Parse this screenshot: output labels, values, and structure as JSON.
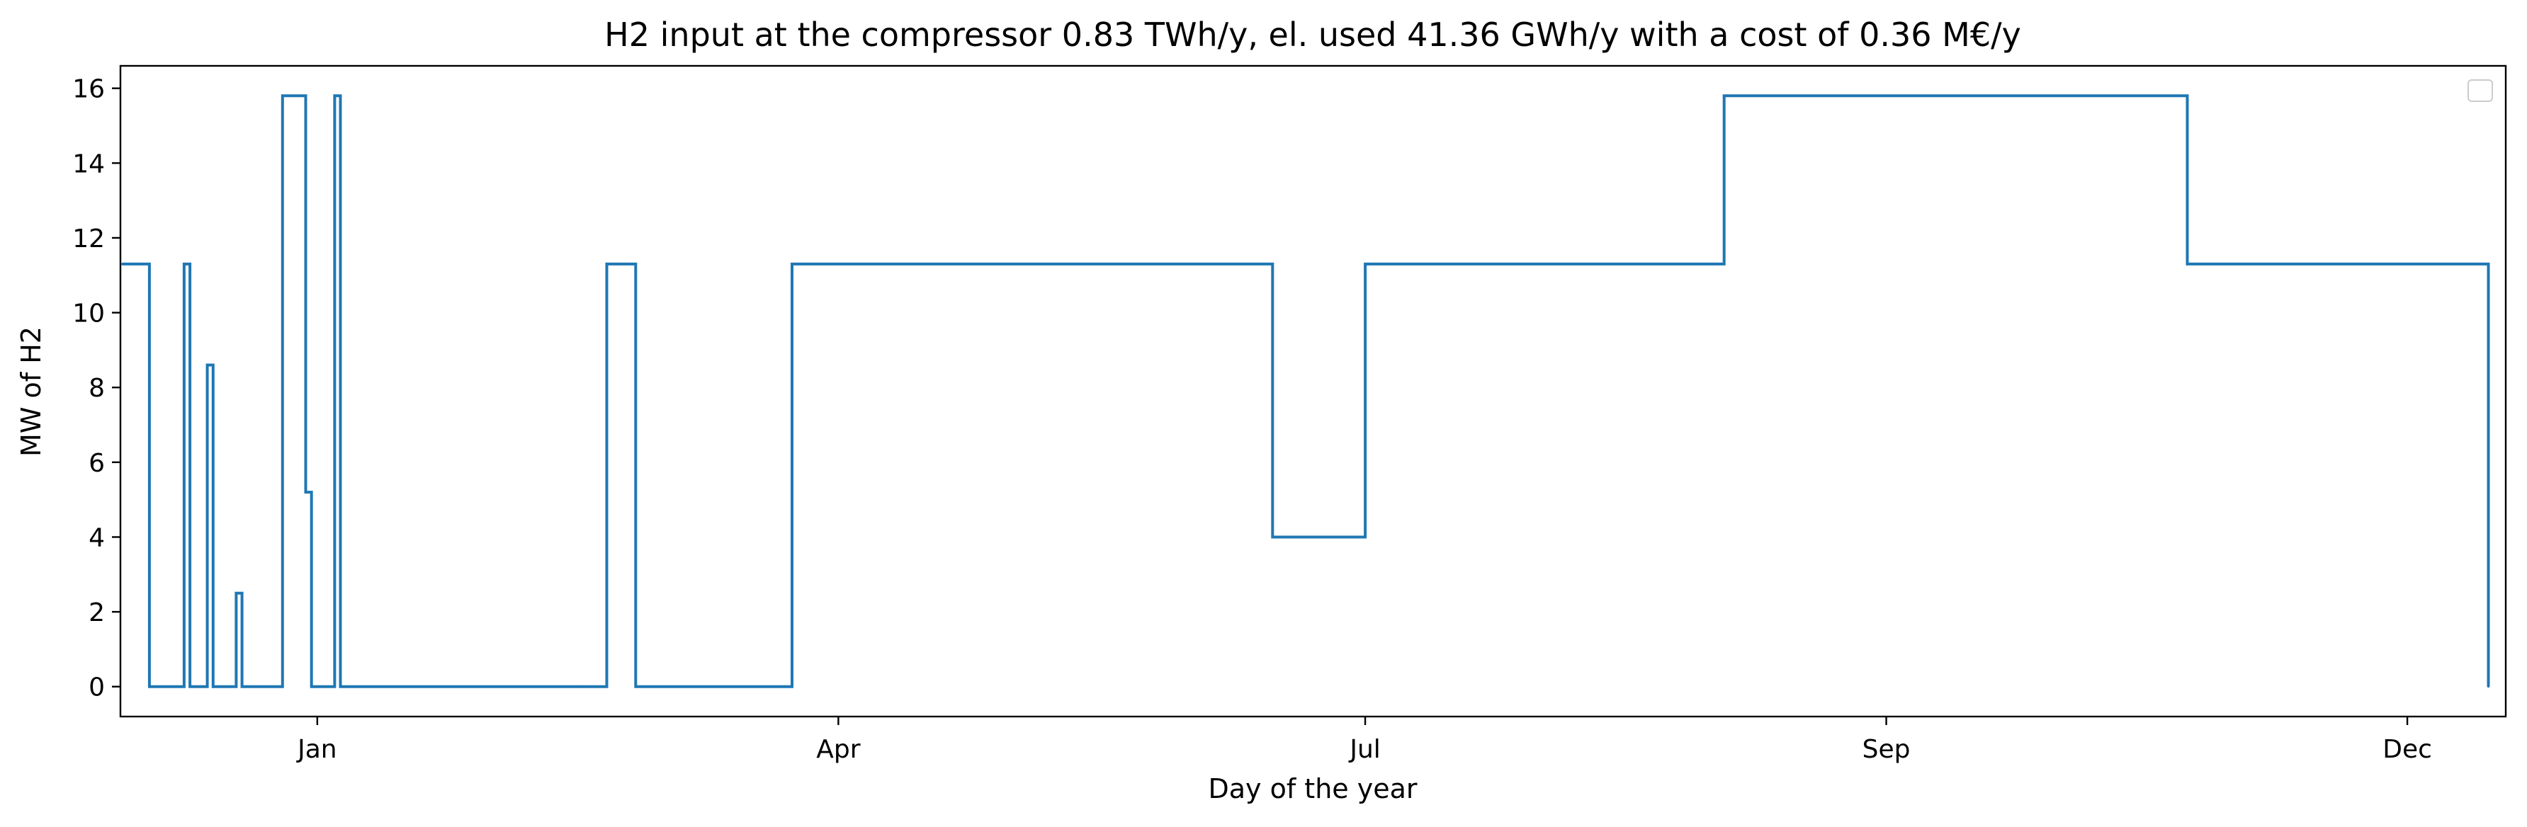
{
  "chart_data": {
    "type": "line",
    "title": "H2 input at the compressor 0.83 TWh/y, el. used 41.36 GWh/y with a cost of 0.36 M€/y",
    "xlabel": "Day of the year",
    "ylabel": "MW of H2",
    "x_ticks": [
      {
        "label": "Jan",
        "day": 0
      },
      {
        "label": "Apr",
        "day": 90
      },
      {
        "label": "Jul",
        "day": 181
      },
      {
        "label": "Sep",
        "day": 271
      },
      {
        "label": "Dec",
        "day": 361
      }
    ],
    "xlim": [
      -34,
      378
    ],
    "ylim": [
      -0.8,
      16.6
    ],
    "y_ticks": [
      0,
      2,
      4,
      6,
      8,
      10,
      12,
      14,
      16
    ],
    "grid": false,
    "legend": {
      "placement": "top-right",
      "entries": []
    },
    "series": [
      {
        "color": "#1f77b4",
        "levels": [
          0,
          11.3,
          15.8
        ],
        "x_start_day": -33.7,
        "x_end_day": 375,
        "samples": [
          {
            "day": -33.7,
            "value": 11.3
          },
          {
            "day": -30,
            "value": 11.3
          },
          {
            "day": -29,
            "value": 0
          },
          {
            "day": -23,
            "value": 11.3
          },
          {
            "day": -22,
            "value": 0
          },
          {
            "day": -20,
            "value": 0
          },
          {
            "day": -19,
            "value": 8.6
          },
          {
            "day": -18,
            "value": 0
          },
          {
            "day": -14,
            "value": 2.5
          },
          {
            "day": -13,
            "value": 0
          },
          {
            "day": -7,
            "value": 0
          },
          {
            "day": -6,
            "value": 15.8
          },
          {
            "day": -3,
            "value": 15.8
          },
          {
            "day": -2,
            "value": 5.2
          },
          {
            "day": -1,
            "value": 0
          },
          {
            "day": 3,
            "value": 15.8
          },
          {
            "day": 4,
            "value": 0
          },
          {
            "day": 45,
            "value": 0
          },
          {
            "day": 50,
            "value": 11.3
          },
          {
            "day": 55,
            "value": 0
          },
          {
            "day": 82,
            "value": 11.3
          },
          {
            "day": 90,
            "value": 11.3
          },
          {
            "day": 131,
            "value": 11.3
          },
          {
            "day": 165,
            "value": 4
          },
          {
            "day": 181,
            "value": 11.3
          },
          {
            "day": 240,
            "value": 11.3
          },
          {
            "day": 243,
            "value": 15.8
          },
          {
            "day": 271,
            "value": 15.8
          },
          {
            "day": 300,
            "value": 15.8
          },
          {
            "day": 302,
            "value": 15.8
          },
          {
            "day": 323,
            "value": 11.3
          },
          {
            "day": 329,
            "value": 11.3
          },
          {
            "day": 361,
            "value": 11.3
          },
          {
            "day": 375,
            "value": 0
          }
        ]
      }
    ]
  }
}
